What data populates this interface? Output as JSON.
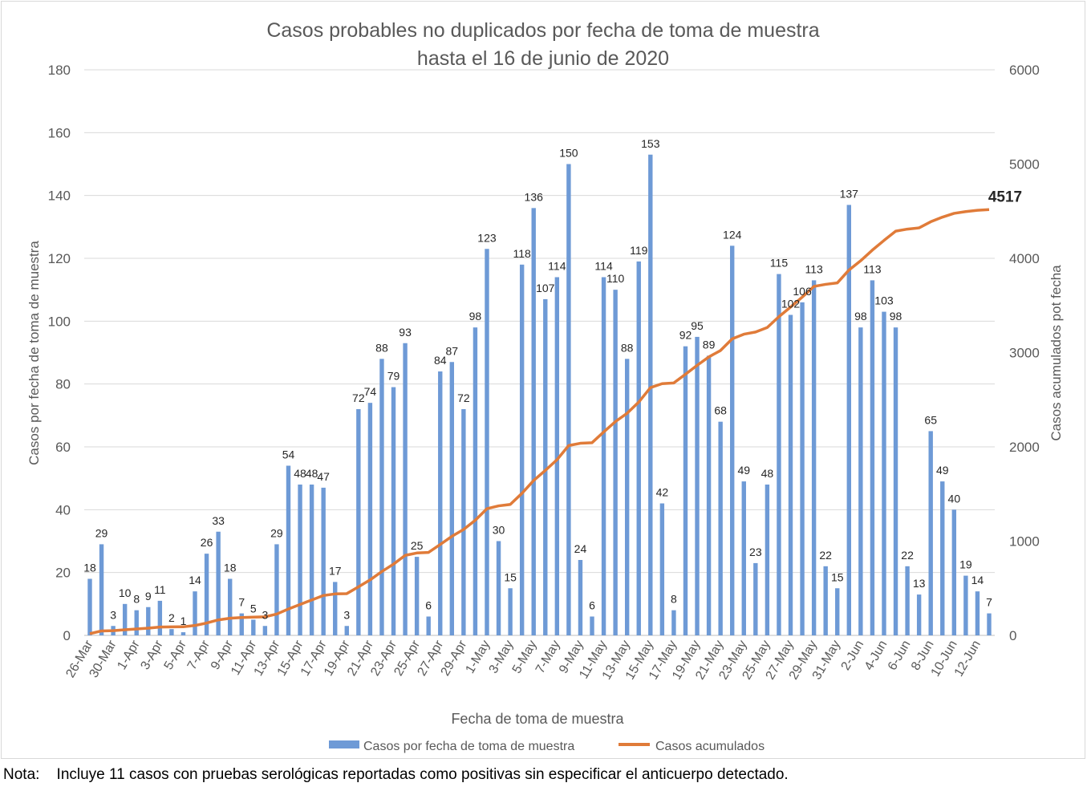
{
  "note": {
    "label": "Nota:",
    "text": "Incluye 11 casos con pruebas serológicas reportadas como positivas sin especificar el anticuerpo detectado."
  },
  "colors": {
    "bars": "#6E9AD6",
    "line": "#E07B39",
    "grid": "#D9D9D9"
  },
  "chart_data": {
    "type": "bar",
    "title": "Casos probables no duplicados por fecha de toma de muestra",
    "subtitle": "hasta el 16 de junio de 2020",
    "xlabel": "Fecha de toma de muestra",
    "ylabel": "Casos por fecha de toma de muestra",
    "y2label": "Casos acumulados pot fecha",
    "ylim": [
      0,
      180
    ],
    "yticks": [
      0,
      20,
      40,
      60,
      80,
      100,
      120,
      140,
      160,
      180
    ],
    "y2lim": [
      0,
      6000
    ],
    "y2ticks": [
      0,
      1000,
      2000,
      3000,
      4000,
      5000,
      6000
    ],
    "grid": true,
    "legend_position": "bottom",
    "tick_labels": [
      "26-Mar",
      "30-Mar",
      "1-Apr",
      "3-Apr",
      "5-Apr",
      "7-Apr",
      "9-Apr",
      "11-Apr",
      "13-Apr",
      "15-Apr",
      "17-Apr",
      "19-Apr",
      "21-Apr",
      "23-Apr",
      "25-Apr",
      "27-Apr",
      "29-Apr",
      "1-May",
      "3-May",
      "5-May",
      "7-May",
      "9-May",
      "11-May",
      "13-May",
      "15-May",
      "17-May",
      "19-May",
      "21-May",
      "23-May",
      "25-May",
      "27-May",
      "29-May",
      "31-May",
      "2-Jun",
      "4-Jun",
      "6-Jun",
      "8-Jun",
      "10-Jun",
      "12-Jun"
    ],
    "series": [
      {
        "name": "Casos por fecha de toma de muestra",
        "type": "bar",
        "axis": "left",
        "values": [
          18,
          29,
          3,
          10,
          8,
          9,
          11,
          2,
          1,
          14,
          26,
          33,
          18,
          7,
          5,
          3,
          29,
          54,
          48,
          48,
          47,
          17,
          3,
          72,
          74,
          88,
          79,
          93,
          25,
          6,
          84,
          87,
          72,
          98,
          123,
          30,
          15,
          118,
          136,
          107,
          114,
          150,
          24,
          6,
          114,
          110,
          88,
          119,
          153,
          42,
          8,
          92,
          95,
          89,
          68,
          124,
          49,
          23,
          48,
          115,
          102,
          106,
          113,
          22,
          15,
          137,
          98,
          113,
          103,
          98,
          22,
          13,
          65,
          49,
          40,
          19,
          14,
          7
        ]
      },
      {
        "name": "Casos acumulados",
        "type": "line",
        "axis": "right",
        "values": [
          18,
          47,
          50,
          60,
          68,
          77,
          88,
          90,
          91,
          105,
          131,
          164,
          182,
          189,
          194,
          197,
          226,
          280,
          328,
          376,
          423,
          440,
          443,
          515,
          589,
          677,
          756,
          849,
          874,
          880,
          964,
          1051,
          1123,
          1221,
          1344,
          1374,
          1389,
          1507,
          1643,
          1750,
          1864,
          2014,
          2038,
          2044,
          2158,
          2268,
          2356,
          2475,
          2628,
          2670,
          2678,
          2770,
          2865,
          2954,
          3022,
          3146,
          3195,
          3218,
          3266,
          3381,
          3483,
          3589,
          3702,
          3724,
          3739,
          3876,
          3974,
          4087,
          4190,
          4288,
          4310,
          4323,
          4388,
          4437,
          4477,
          4496,
          4510,
          4517
        ],
        "end_label": "4517"
      }
    ]
  }
}
